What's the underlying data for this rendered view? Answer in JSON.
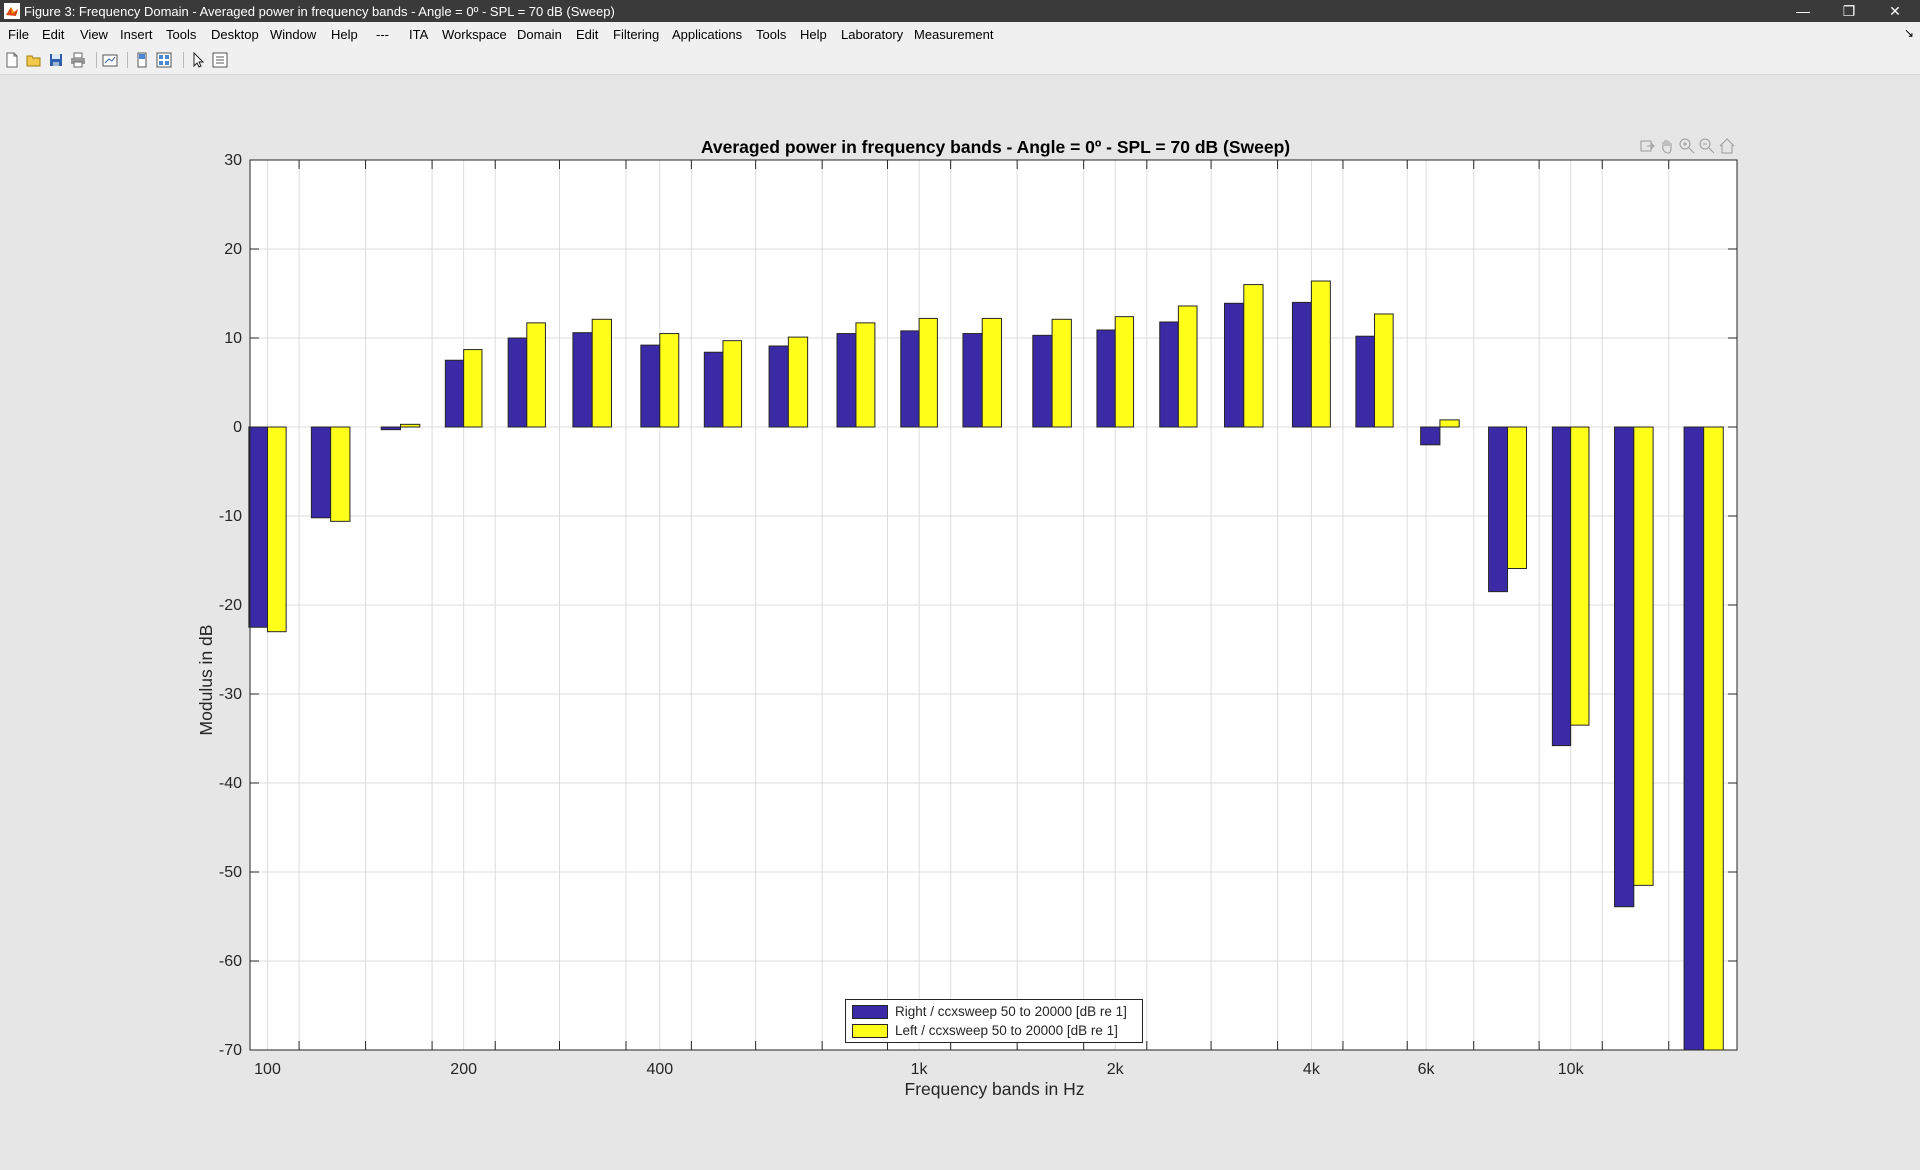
{
  "window": {
    "title": "Figure 3: Frequency Domain - Averaged power in frequency bands - Angle = 0º - SPL = 70 dB (Sweep)",
    "minimize_icon": "minimize-icon",
    "restore_icon": "restore-icon",
    "close_icon": "close-icon"
  },
  "menu": {
    "items": [
      "File",
      "Edit",
      "View",
      "Insert",
      "Tools",
      "Desktop",
      "Window",
      "Help",
      "---",
      "ITA",
      "Workspace",
      "Domain",
      "Edit",
      "Filtering",
      "Applications",
      "Tools",
      "Help",
      "Laboratory",
      "Measurement"
    ]
  },
  "toolbar": {
    "icons": [
      "new-figure-icon",
      "open-file-icon",
      "save-icon",
      "print-icon",
      "link-plot-icon",
      "hide-plot-tools-icon",
      "show-plot-tools-icon",
      "edit-plot-pointer-icon",
      "property-inspector-icon"
    ]
  },
  "axes_toolbar": {
    "icons": [
      "export-icon",
      "pan-hand-icon",
      "zoom-in-icon",
      "zoom-out-icon",
      "restore-view-home-icon"
    ]
  },
  "colors": {
    "right_series": "#3b2aa6",
    "left_series": "#ffff1a",
    "figure_bg": "#e6e6e6"
  },
  "chart_data": {
    "type": "bar",
    "title": "Averaged power in frequency bands - Angle = 0º - SPL = 70 dB (Sweep)",
    "xlabel": "Frequency bands in Hz",
    "ylabel": "Modulus in dB",
    "x_scale": "log",
    "xlim": [
      94,
      18000
    ],
    "ylim": [
      -70,
      30
    ],
    "yticks": [
      30,
      20,
      10,
      0,
      -10,
      -20,
      -30,
      -40,
      -50,
      -60,
      -70
    ],
    "xtick_labels": [
      {
        "value": 100,
        "label": "100"
      },
      {
        "value": 200,
        "label": "200"
      },
      {
        "value": 400,
        "label": "400"
      },
      {
        "value": 1000,
        "label": "1k"
      },
      {
        "value": 2000,
        "label": "2k"
      },
      {
        "value": 4000,
        "label": "4k"
      },
      {
        "value": 6000,
        "label": "6k"
      },
      {
        "value": 10000,
        "label": "10k"
      }
    ],
    "grid": true,
    "legend_position": "bottom-center",
    "band_centers": [
      100,
      125,
      160,
      200,
      250,
      315,
      400,
      500,
      630,
      800,
      1000,
      1250,
      1600,
      2000,
      2500,
      3150,
      4000,
      5000,
      6300,
      8000,
      10000,
      12500,
      16000
    ],
    "series": [
      {
        "name": "Right / ccxsweep 50 to 20000 [dB re 1]",
        "values": [
          -22.5,
          -10.2,
          -0.3,
          7.5,
          10.0,
          10.6,
          9.2,
          8.4,
          9.1,
          10.5,
          10.8,
          10.5,
          10.3,
          10.9,
          11.8,
          13.9,
          14.0,
          10.2,
          -2.0,
          -18.5,
          -35.8,
          -53.9,
          -70
        ]
      },
      {
        "name": "Left / ccxsweep 50 to 20000 [dB re 1]",
        "values": [
          -23.0,
          -10.6,
          0.3,
          8.7,
          11.7,
          12.1,
          10.5,
          9.7,
          10.1,
          11.7,
          12.2,
          12.2,
          12.1,
          12.4,
          13.6,
          16.0,
          16.4,
          12.7,
          0.8,
          -15.9,
          -33.5,
          -51.5,
          -70
        ]
      }
    ]
  }
}
